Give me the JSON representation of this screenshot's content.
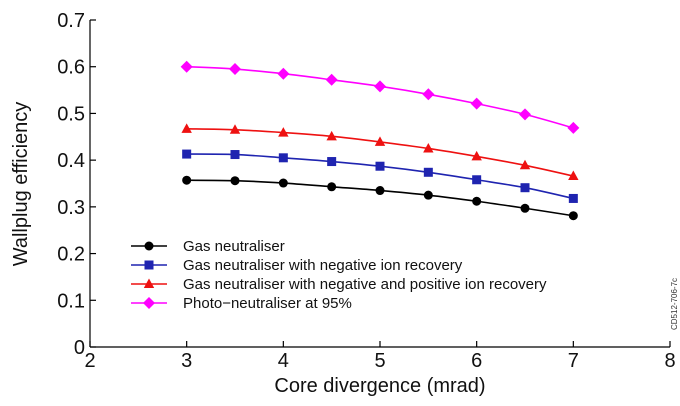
{
  "chart_data": {
    "type": "line",
    "title": "",
    "xlabel": "Core divergence (mrad)",
    "ylabel": "Wallplug efficiency",
    "xlim": [
      2,
      8
    ],
    "ylim": [
      0,
      0.7
    ],
    "xticks": [
      2,
      3,
      4,
      5,
      6,
      7,
      8
    ],
    "yticks": [
      0,
      0.1,
      0.2,
      0.3,
      0.4,
      0.5,
      0.6,
      0.7
    ],
    "xtick_labels": [
      "2",
      "3",
      "4",
      "5",
      "6",
      "7",
      "8"
    ],
    "ytick_labels": [
      "0",
      "0.1",
      "0.2",
      "0.3",
      "0.4",
      "0.5",
      "0.6",
      "0.7"
    ],
    "grid": false,
    "legend_position": "bottom-left",
    "x": [
      3,
      3.5,
      4,
      4.5,
      5,
      5.5,
      6,
      6.5,
      7
    ],
    "series": [
      {
        "name": "Gas neutraliser",
        "color": "#000000",
        "marker": "circle",
        "values": [
          0.357,
          0.356,
          0.351,
          0.343,
          0.335,
          0.325,
          0.312,
          0.297,
          0.281
        ]
      },
      {
        "name": "Gas neutraliser with negative ion recovery",
        "color": "#1f24b0",
        "marker": "square",
        "values": [
          0.413,
          0.412,
          0.405,
          0.397,
          0.387,
          0.374,
          0.358,
          0.341,
          0.318
        ]
      },
      {
        "name": "Gas neutraliser with negative and positive ion recovery",
        "color": "#ee1111",
        "marker": "triangle",
        "values": [
          0.467,
          0.465,
          0.459,
          0.451,
          0.439,
          0.425,
          0.408,
          0.389,
          0.366
        ]
      },
      {
        "name": "Photo−neutraliser at 95%",
        "color": "#ff00ff",
        "marker": "diamond",
        "values": [
          0.6,
          0.595,
          0.585,
          0.572,
          0.558,
          0.541,
          0.521,
          0.498,
          0.469
        ]
      }
    ]
  },
  "watermark": "CD512-706-7c"
}
